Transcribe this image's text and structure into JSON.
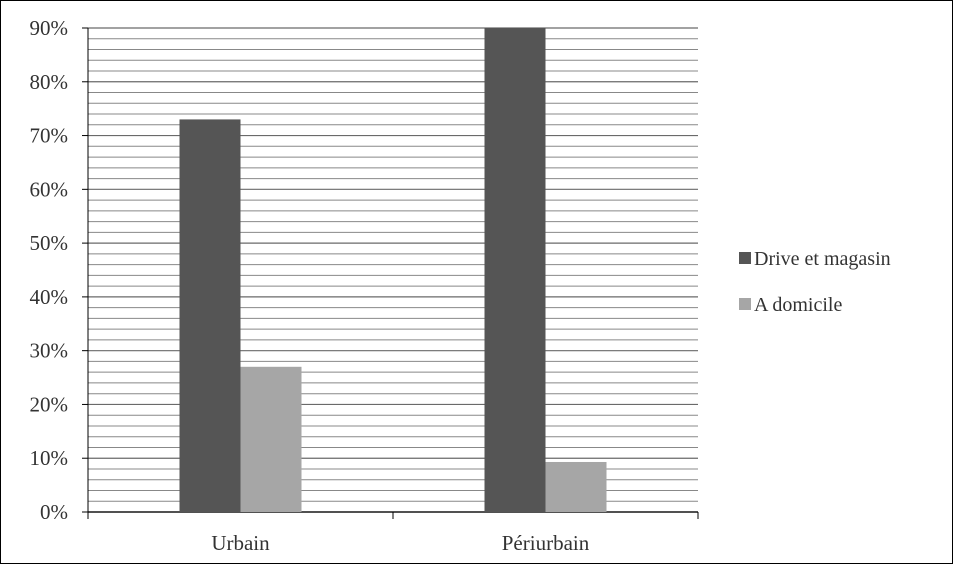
{
  "chart_data": {
    "type": "bar",
    "title": "",
    "xlabel": "",
    "ylabel": "",
    "categories": [
      "Urbain",
      "Périurbain"
    ],
    "series": [
      {
        "name": "Drive et magasin",
        "values": [
          73,
          90
        ],
        "color": "#555555"
      },
      {
        "name": "A domicile",
        "values": [
          27,
          9.3
        ],
        "color": "#A6A6A6"
      }
    ],
    "ylim": [
      0,
      90
    ],
    "y_major_ticks": [
      "0%",
      "10%",
      "20%",
      "30%",
      "40%",
      "50%",
      "60%",
      "70%",
      "80%",
      "90%"
    ],
    "grid": true,
    "gridline_color": "#888888",
    "legend_position": "right"
  }
}
